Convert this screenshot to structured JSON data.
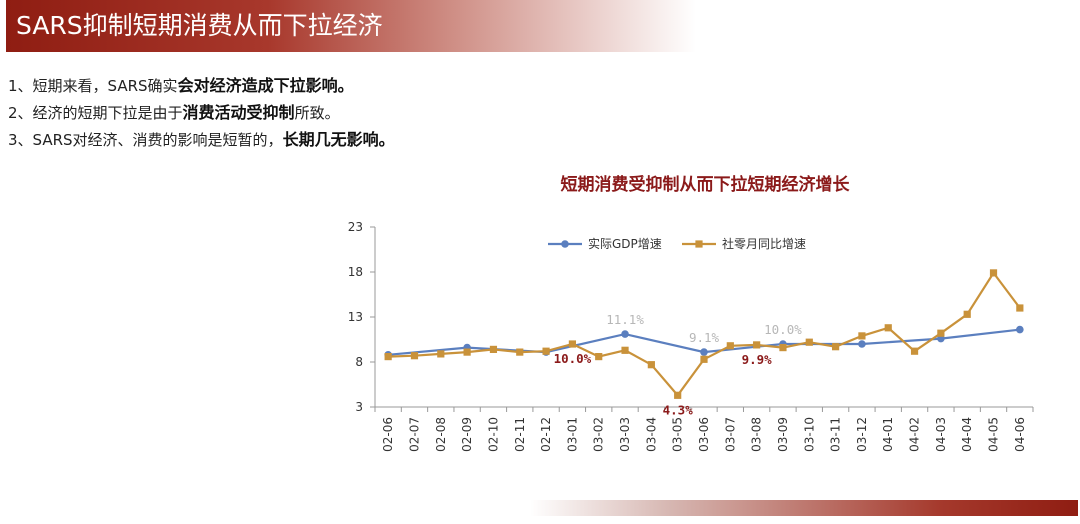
{
  "header": {
    "title": "SARS抑制短期消费从而下拉经济"
  },
  "bullets": [
    {
      "prefix": "1、短期来看，SARS确实",
      "emphasis": "会对经济造成下拉影响。",
      "suffix": ""
    },
    {
      "prefix": "2、经济的短期下拉是由于",
      "emphasis": "消费活动受抑制",
      "suffix": "所致。"
    },
    {
      "prefix": "3、SARS对经济、消费的影响是短暂的，",
      "emphasis": "长期几无影响。",
      "suffix": ""
    }
  ],
  "colors": {
    "banner": "#8f1d12",
    "gdp_line": "#5b7fbf",
    "retail_line": "#c9923a",
    "annotation_red": "#8b1a1a",
    "annotation_gray": "#b7b7b7"
  },
  "chart_data": {
    "type": "line",
    "title": "短期消费受抑制从而下拉短期经济增长",
    "xlabel": "",
    "ylabel": "",
    "ylim": [
      3,
      23
    ],
    "yticks": [
      3,
      8,
      13,
      18,
      23
    ],
    "grid": false,
    "legend_position": "top-center",
    "x": [
      "02-06",
      "02-07",
      "02-08",
      "02-09",
      "02-10",
      "02-11",
      "02-12",
      "03-01",
      "03-02",
      "03-03",
      "03-04",
      "03-05",
      "03-06",
      "03-07",
      "03-08",
      "03-09",
      "03-10",
      "03-11",
      "03-12",
      "04-01",
      "04-02",
      "04-03",
      "04-04",
      "04-05",
      "04-06"
    ],
    "series": [
      {
        "name": "实际GDP增速",
        "color": "#5b7fbf",
        "marker": "circle",
        "points": [
          {
            "x": "02-06",
            "y": 8.8
          },
          {
            "x": "02-09",
            "y": 9.6
          },
          {
            "x": "02-12",
            "y": 9.1
          },
          {
            "x": "03-03",
            "y": 11.1
          },
          {
            "x": "03-06",
            "y": 9.1
          },
          {
            "x": "03-09",
            "y": 10.0
          },
          {
            "x": "03-12",
            "y": 10.0
          },
          {
            "x": "04-03",
            "y": 10.6
          },
          {
            "x": "04-06",
            "y": 11.6
          }
        ]
      },
      {
        "name": "社零月同比增速",
        "color": "#c9923a",
        "marker": "square",
        "values": [
          8.6,
          8.7,
          8.9,
          9.1,
          9.4,
          9.1,
          9.2,
          10.0,
          8.6,
          9.3,
          7.7,
          4.3,
          8.3,
          9.8,
          9.9,
          9.6,
          10.2,
          9.7,
          10.9,
          11.8,
          9.2,
          11.2,
          13.3,
          17.9,
          14.0
        ]
      }
    ],
    "annotations": [
      {
        "text": "11.1%",
        "x": "03-03",
        "y": 11.1,
        "color": "#b7b7b7",
        "position": "above"
      },
      {
        "text": "9.1%",
        "x": "03-06",
        "y": 9.1,
        "color": "#b7b7b7",
        "position": "above"
      },
      {
        "text": "10.0%",
        "x": "03-09",
        "y": 10.0,
        "color": "#b7b7b7",
        "position": "above"
      },
      {
        "text": "10.0%",
        "x": "03-01",
        "y": 10.0,
        "color": "#8b1a1a",
        "position": "below"
      },
      {
        "text": "4.3%",
        "x": "03-05",
        "y": 4.3,
        "color": "#8b1a1a",
        "position": "below"
      },
      {
        "text": "9.9%",
        "x": "03-08",
        "y": 9.9,
        "color": "#8b1a1a",
        "position": "below"
      }
    ]
  }
}
